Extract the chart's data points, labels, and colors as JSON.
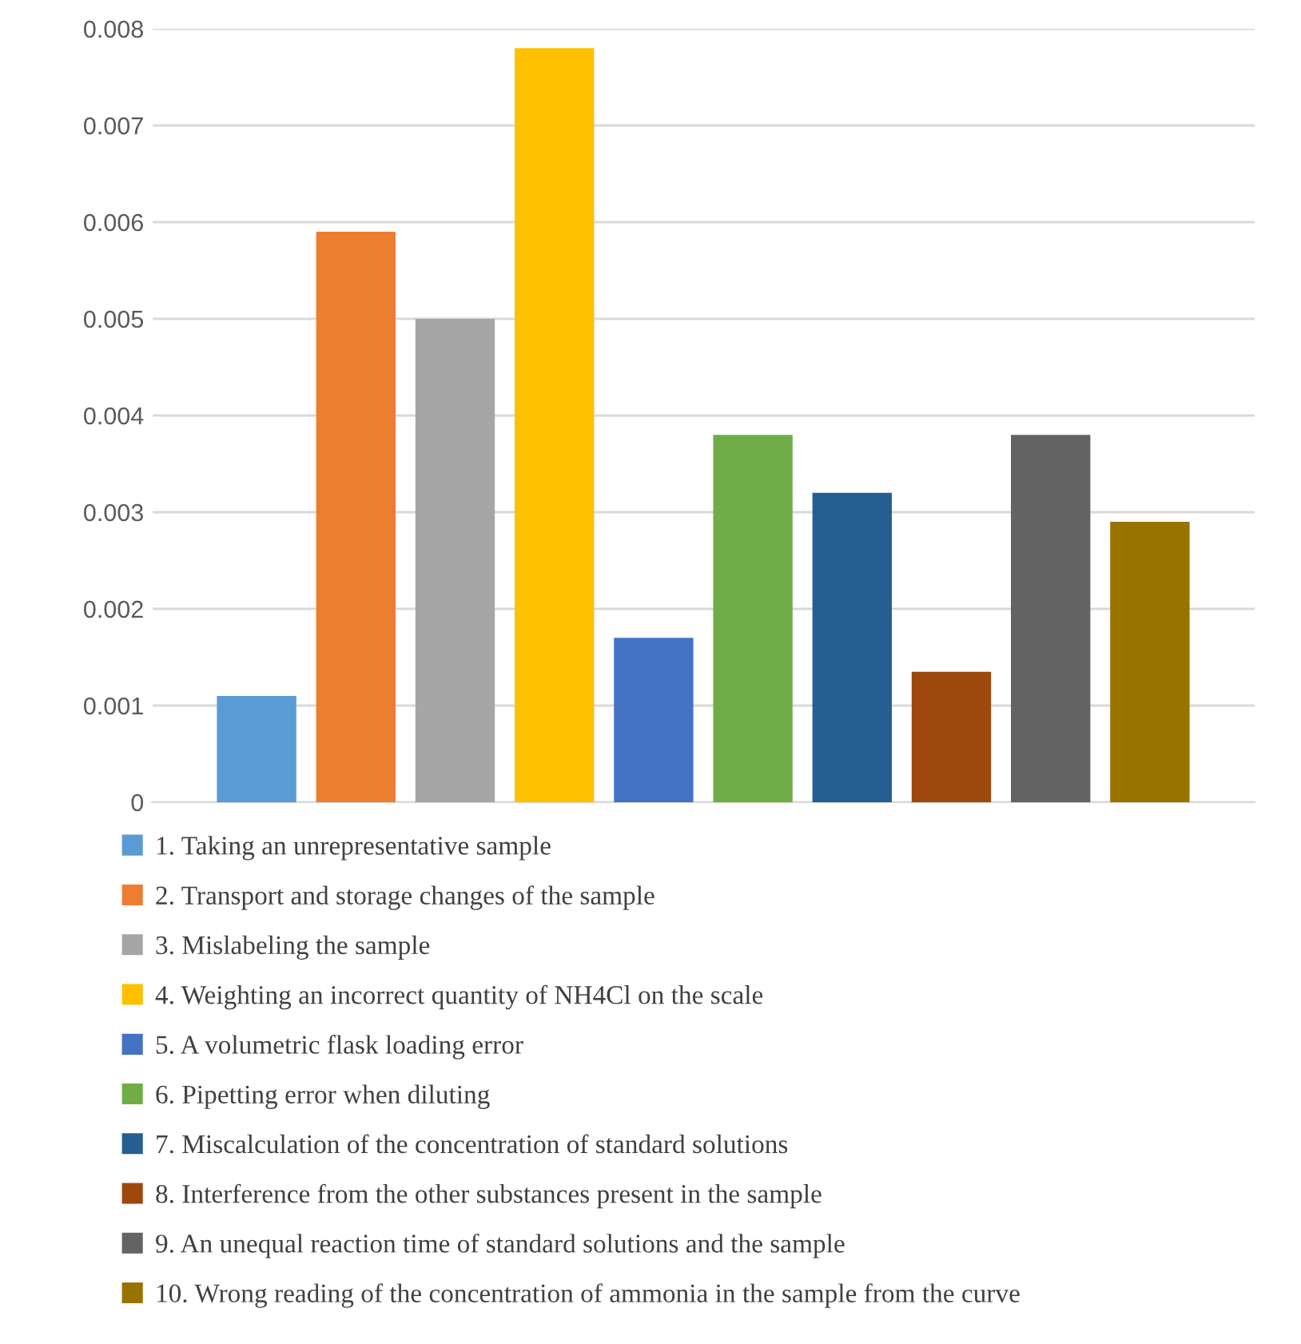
{
  "chart_data": {
    "type": "bar",
    "categories": [
      null
    ],
    "series": [
      {
        "name": "1. Taking an unrepresentative sample",
        "color": "#5b9bd5",
        "values": [
          0.0011
        ]
      },
      {
        "name": "2. Transport and storage changes of the sample",
        "color": "#ed7d31",
        "values": [
          0.0059
        ]
      },
      {
        "name": "3. Mislabeling the sample",
        "color": "#a5a5a5",
        "values": [
          0.005
        ]
      },
      {
        "name": "4. Weighting an incorrect quantity of NH4Cl on the scale",
        "color": "#ffc000",
        "values": [
          0.0078
        ]
      },
      {
        "name": "5. A volumetric flask loading error",
        "color": "#4472c4",
        "values": [
          0.0017
        ]
      },
      {
        "name": "6. Pipetting error when diluting",
        "color": "#70ad47",
        "values": [
          0.0038
        ]
      },
      {
        "name": "7. Miscalculation of the concentration of standard solutions",
        "color": "#255e91",
        "values": [
          0.0032
        ]
      },
      {
        "name": "8. Interference from the other substances present in the sample",
        "color": "#9e480e",
        "values": [
          0.00135
        ]
      },
      {
        "name": "9. An unequal reaction time of standard solutions and the sample",
        "color": "#636363",
        "values": [
          0.0038
        ]
      },
      {
        "name": "10. Wrong reading of the concentration of ammonia in the sample from the curve",
        "color": "#997300",
        "values": [
          0.0029
        ]
      }
    ],
    "ylim": [
      0,
      0.008
    ],
    "yticks": [
      0,
      0.001,
      0.002,
      0.003,
      0.004,
      0.005,
      0.006,
      0.007,
      0.008
    ],
    "grid": "y",
    "legend": "bottom"
  }
}
